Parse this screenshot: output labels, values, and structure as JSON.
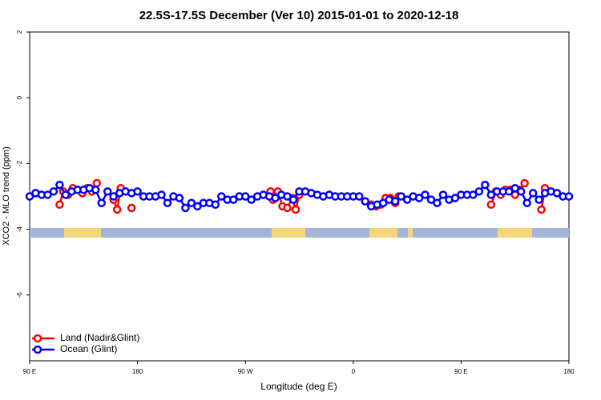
{
  "chart_data": {
    "type": "line",
    "title": "22.5S-17.5S December (Ver 10)   2015-01-01 to 2020-12-18",
    "x_label": "Longitude (deg E)",
    "y_label": "XCO2 - MLO trend (ppm)",
    "xlim": [
      90,
      540
    ],
    "ylim": [
      -8,
      2
    ],
    "xticks": [
      {
        "value": 90,
        "label": "90 E"
      },
      180,
      {
        "value": 270,
        "label": "90 W"
      },
      {
        "value": 360,
        "label": "0"
      },
      {
        "value": 450,
        "label": "90 E"
      },
      {
        "value": 540,
        "label": "180"
      }
    ],
    "yticks": [
      -6,
      -4,
      -2,
      0,
      2
    ],
    "legend": "bottom-left",
    "series": [
      {
        "name": "Land (Nadir&Glint)",
        "color": "#ff0000",
        "x": [
          115,
          118,
          122,
          126,
          130,
          134,
          138,
          142,
          146,
          150,
          160,
          163,
          166,
          170,
          175,
          180,
          291,
          293,
          297,
          301,
          305,
          309,
          312,
          315,
          320,
          375,
          379,
          383,
          387,
          391,
          395,
          398,
          405,
          475,
          479,
          483,
          487,
          491,
          495,
          499,
          503,
          510,
          517,
          520
        ],
        "values": [
          -3.25,
          -2.85,
          -2.95,
          -2.75,
          -2.8,
          -2.9,
          -2.75,
          -2.85,
          -2.6,
          null,
          -3.1,
          -3.4,
          -2.75,
          null,
          -3.35,
          null,
          -2.85,
          -3.1,
          -2.85,
          -3.3,
          -3.35,
          -3.05,
          -3.4,
          -2.95,
          null,
          -3.25,
          -3.3,
          -3.25,
          -3.05,
          -3.05,
          -3.2,
          -3.0,
          null,
          -3.25,
          -2.85,
          -2.95,
          -2.8,
          -2.8,
          -2.95,
          -2.8,
          -2.6,
          null,
          -3.4,
          -2.75
        ]
      },
      {
        "name": "Ocean (Glint)",
        "color": "#0000ff",
        "x": [
          90,
          95,
          100,
          105,
          110,
          115,
          120,
          125,
          130,
          135,
          140,
          145,
          150,
          155,
          160,
          165,
          170,
          175,
          180,
          185,
          190,
          195,
          200,
          205,
          210,
          215,
          220,
          225,
          230,
          235,
          240,
          245,
          250,
          255,
          260,
          265,
          270,
          275,
          280,
          285,
          290,
          295,
          300,
          305,
          310,
          315,
          320,
          325,
          330,
          335,
          340,
          345,
          350,
          355,
          360,
          365,
          370,
          375,
          380,
          385,
          390,
          395,
          400,
          405,
          410,
          415,
          420,
          425,
          430,
          435,
          440,
          445,
          450,
          455,
          460,
          465,
          470,
          475,
          480,
          485,
          490,
          495,
          500,
          505,
          510,
          515,
          520,
          525,
          530,
          535,
          540
        ],
        "values": [
          -3.0,
          -2.9,
          -2.95,
          -2.95,
          -2.85,
          -2.65,
          -2.95,
          -2.85,
          -2.8,
          -2.8,
          -2.75,
          -2.8,
          -3.2,
          -2.85,
          -3.0,
          -2.9,
          -2.85,
          -2.9,
          -2.85,
          -3.0,
          -3.0,
          -3.0,
          -2.95,
          -3.2,
          -3.0,
          -3.05,
          -3.35,
          -3.2,
          -3.3,
          -3.2,
          -3.2,
          -3.25,
          -3.0,
          -3.1,
          -3.1,
          -3.0,
          -3.0,
          -3.1,
          -3.0,
          -2.95,
          -3.0,
          -3.05,
          -2.95,
          -3.0,
          -3.1,
          -2.85,
          -2.85,
          -2.9,
          -2.95,
          -3.0,
          -2.95,
          -3.0,
          -3.0,
          -3.0,
          -3.0,
          -3.0,
          -3.15,
          -3.3,
          -3.25,
          -3.2,
          -3.1,
          -3.15,
          -3.0,
          -3.1,
          -3.0,
          -3.05,
          -2.95,
          -3.1,
          -3.2,
          -2.95,
          -3.1,
          -3.05,
          -2.95,
          -2.95,
          -2.95,
          -2.85,
          -2.65,
          -2.95,
          -2.85,
          -2.85,
          -2.85,
          -2.75,
          -2.85,
          -3.2,
          -2.9,
          -3.1,
          -2.9,
          -2.85,
          -2.9,
          -3.0,
          -3.0
        ]
      }
    ]
  }
}
